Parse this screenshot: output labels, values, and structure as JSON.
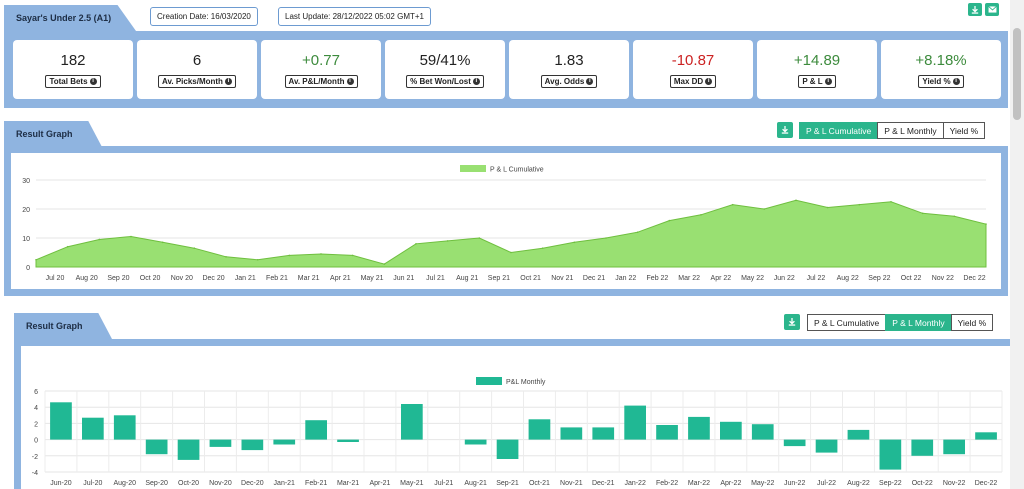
{
  "header": {
    "title": "Sayar's Under 2.5 (A1)",
    "creation_date": "Creation Date: 16/03/2020",
    "last_update": "Last Update: 28/12/2022 05:02 GMT+1",
    "download_icon": "download-icon",
    "email_icon": "envelope-icon"
  },
  "stats": [
    {
      "value": "182",
      "label": "Total Bets",
      "tone": "neutral"
    },
    {
      "value": "6",
      "label": "Av. Picks/Month",
      "tone": "neutral"
    },
    {
      "value": "+0.77",
      "label": "Av. P&L/Month",
      "tone": "pos"
    },
    {
      "value": "59/41%",
      "label": "% Bet Won/Lost",
      "tone": "neutral"
    },
    {
      "value": "1.83",
      "label": "Avg. Odds",
      "tone": "neutral"
    },
    {
      "value": "-10.87",
      "label": "Max DD",
      "tone": "neg"
    },
    {
      "value": "+14.89",
      "label": "P & L",
      "tone": "pos"
    },
    {
      "value": "+8.18%",
      "label": "Yield %",
      "tone": "pos"
    }
  ],
  "graph1": {
    "title": "Result Graph",
    "buttons": [
      "P & L Cumulative",
      "P & L Monthly",
      "Yield %"
    ],
    "active": 0
  },
  "graph2": {
    "title": "Result Graph",
    "buttons": [
      "P & L Cumulative",
      "P & L Monthly",
      "Yield %"
    ],
    "active": 1
  },
  "colors": {
    "accent": "#2bb58c",
    "panel": "#8fb4e0",
    "area_fill": "#99e072",
    "area_line": "#6fbf3f",
    "bar": "#20b894"
  },
  "chart_data": [
    {
      "type": "area",
      "legend": "P & L Cumulative",
      "legend_position": "top-center",
      "grid": true,
      "ylim": [
        0,
        30
      ],
      "yticks": [
        0,
        10,
        20,
        30
      ],
      "categories": [
        "Jul 20",
        "Aug 20",
        "Sep 20",
        "Oct 20",
        "Nov 20",
        "Dec 20",
        "Jan 21",
        "Feb 21",
        "Mar 21",
        "Apr 21",
        "May 21",
        "Jun 21",
        "Jul 21",
        "Aug 21",
        "Sep 21",
        "Oct 21",
        "Nov 21",
        "Dec 21",
        "Jan 22",
        "Feb 22",
        "Mar 22",
        "Apr 22",
        "May 22",
        "Jun 22",
        "Jul 22",
        "Aug 22",
        "Sep 22",
        "Oct 22",
        "Nov 22",
        "Dec 22"
      ],
      "x": [
        "Jun 20",
        "Jul 20",
        "Aug 20",
        "Sep 20",
        "Oct 20",
        "Nov 20",
        "Dec 20",
        "Jan 21",
        "Feb 21",
        "Mar 21",
        "Apr 21",
        "May 21",
        "Jun 21",
        "Jul 21",
        "Aug 21",
        "Sep 21",
        "Oct 21",
        "Nov 21",
        "Dec 21",
        "Jan 22",
        "Feb 22",
        "Mar 22",
        "Apr 22",
        "May 22",
        "Jun 22",
        "Jul 22",
        "Aug 22",
        "Sep 22",
        "Oct 22",
        "Nov 22",
        "Dec 22"
      ],
      "values": [
        2.5,
        7.0,
        9.5,
        10.5,
        8.5,
        6.5,
        3.5,
        2.5,
        4.0,
        4.5,
        4.0,
        1.0,
        8.0,
        9.0,
        10.0,
        5.0,
        6.5,
        8.5,
        10.0,
        12.0,
        16.0,
        18.0,
        21.5,
        20.0,
        23.0,
        20.5,
        21.5,
        22.5,
        18.5,
        17.5,
        14.8
      ]
    },
    {
      "type": "bar",
      "legend": "P&L Monthly",
      "legend_position": "top-center",
      "grid": true,
      "ylim": [
        -4,
        6
      ],
      "yticks": [
        -4,
        -2,
        0,
        2,
        4,
        6
      ],
      "categories": [
        "Jun-20",
        "Jul-20",
        "Aug-20",
        "Sep-20",
        "Oct-20",
        "Nov-20",
        "Dec-20",
        "Jan-21",
        "Feb-21",
        "Mar-21",
        "Apr-21",
        "May-21",
        "Jul-21",
        "Aug-21",
        "Sep-21",
        "Oct-21",
        "Nov-21",
        "Dec-21",
        "Jan-22",
        "Feb-22",
        "Mar-22",
        "Apr-22",
        "May-22",
        "Jun-22",
        "Jul-22",
        "Aug-22",
        "Sep-22",
        "Oct-22",
        "Nov-22",
        "Dec-22"
      ],
      "values": [
        4.6,
        2.7,
        3.0,
        -1.8,
        -2.5,
        -0.9,
        -1.3,
        -0.6,
        2.4,
        -0.3,
        0.0,
        4.4,
        0.0,
        -0.6,
        -2.4,
        2.5,
        1.5,
        1.5,
        4.2,
        1.8,
        2.8,
        2.2,
        1.9,
        -0.8,
        -1.6,
        1.2,
        -3.7,
        -2.0,
        -1.8,
        0.9
      ]
    }
  ]
}
